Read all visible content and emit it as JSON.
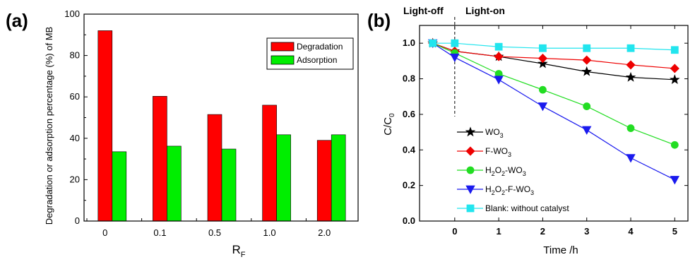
{
  "chart_data": [
    {
      "type": "bar",
      "panel_label": "(a)",
      "categories": [
        "0",
        "0.1",
        "0.5",
        "1.0",
        "2.0"
      ],
      "series": [
        {
          "name": "Degradation",
          "values": [
            92,
            60.3,
            51.5,
            56,
            39
          ],
          "color": "#ff0000"
        },
        {
          "name": "Adsorption",
          "values": [
            33.5,
            36.2,
            34.8,
            41.7,
            41.7
          ],
          "color": "#00ee00"
        }
      ],
      "xlabel": "R",
      "xlabel_sub": "F",
      "ylabel": "Degradation or adsorption percentage (%) of MB",
      "ylim": [
        0,
        100
      ],
      "yticks": [
        0,
        20,
        40,
        60,
        80,
        100
      ],
      "legend_position": "top-right",
      "grid": false
    },
    {
      "type": "line",
      "panel_label": "(b)",
      "x": [
        -0.5,
        0,
        1,
        2,
        3,
        4,
        5
      ],
      "series": [
        {
          "name_parts": [
            [
              "WO",
              ""
            ],
            [
              "3",
              "sub"
            ]
          ],
          "values": [
            1.0,
            0.955,
            0.925,
            0.885,
            0.84,
            0.808,
            0.795
          ],
          "color": "#000000",
          "marker": "star"
        },
        {
          "name_parts": [
            [
              "F-WO",
              ""
            ],
            [
              "3",
              "sub"
            ]
          ],
          "values": [
            1.0,
            0.955,
            0.925,
            0.915,
            0.905,
            0.878,
            0.858
          ],
          "color": "#ee0000",
          "marker": "diamond"
        },
        {
          "name_parts": [
            [
              "H",
              ""
            ],
            [
              "2",
              "sub"
            ],
            [
              "O",
              ""
            ],
            [
              "2",
              "sub"
            ],
            [
              "-WO",
              ""
            ],
            [
              "3",
              "sub"
            ]
          ],
          "values": [
            1.0,
            0.945,
            0.828,
            0.738,
            0.645,
            0.522,
            0.428
          ],
          "color": "#22dd22",
          "marker": "circle"
        },
        {
          "name_parts": [
            [
              "H",
              ""
            ],
            [
              "2",
              "sub"
            ],
            [
              "O",
              ""
            ],
            [
              "2",
              "sub"
            ],
            [
              "-F-WO",
              ""
            ],
            [
              "3",
              "sub"
            ]
          ],
          "values": [
            1.0,
            0.92,
            0.795,
            0.645,
            0.512,
            0.355,
            0.232
          ],
          "color": "#1a1aee",
          "marker": "triangle-down"
        },
        {
          "name_parts": [
            [
              "Blank: without catalyst",
              ""
            ]
          ],
          "values": [
            1.0,
            1.0,
            0.98,
            0.972,
            0.972,
            0.972,
            0.962
          ],
          "color": "#22e5ee",
          "marker": "square"
        }
      ],
      "xlabel": "Time /h",
      "ylabel": "C/C",
      "ylabel_sub": "0",
      "xlim": [
        -0.8,
        5.3
      ],
      "ylim": [
        0.0,
        1.1
      ],
      "xticks": [
        0,
        1,
        2,
        3,
        4,
        5
      ],
      "yticks": [
        0.0,
        0.2,
        0.4,
        0.6,
        0.8,
        1.0
      ],
      "annotations": [
        "Light-off",
        "Light-on"
      ],
      "legend_position": "bottom-left",
      "grid": false
    }
  ]
}
